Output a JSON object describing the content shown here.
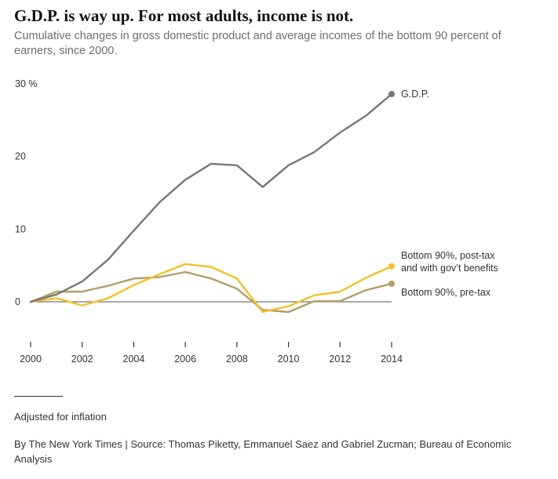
{
  "header": {
    "title": "G.D.P. is way up. For most adults, income is not.",
    "subtitle": "Cumulative changes in gross domestic product and average incomes of the bottom 90 percent of earners, since 2000."
  },
  "footer": {
    "note": "Adjusted for inflation",
    "source": "By The New York Times | Source:  Thomas Piketty, Emmanuel Saez and Gabriel Zucman; Bureau of Economic Analysis"
  },
  "chart_data": {
    "type": "line",
    "title": "G.D.P. is way up. For most adults, income is not.",
    "subtitle": "Cumulative changes in gross domestic product and average incomes of the bottom 90 percent of earners, since 2000.",
    "xlabel": "",
    "ylabel": "",
    "x": [
      2000,
      2001,
      2002,
      2003,
      2004,
      2005,
      2006,
      2007,
      2008,
      2009,
      2010,
      2011,
      2012,
      2013,
      2014
    ],
    "xlim": [
      2000,
      2014
    ],
    "ylim": [
      -5,
      30
    ],
    "x_ticks": [
      "2000",
      "2002",
      "2004",
      "2006",
      "2008",
      "2010",
      "2012",
      "2014"
    ],
    "y_ticks": [
      {
        "value": 30,
        "label": "30 %"
      },
      {
        "value": 20,
        "label": "20"
      },
      {
        "value": 10,
        "label": "10"
      },
      {
        "value": 0,
        "label": "0"
      }
    ],
    "grid": false,
    "legend": "direct labels at line ends",
    "series": [
      {
        "name": "G.D.P.",
        "color": "#777777",
        "values": [
          0,
          1.0,
          2.8,
          5.8,
          9.8,
          13.7,
          16.8,
          19.0,
          18.8,
          15.8,
          18.8,
          20.6,
          23.3,
          25.6,
          28.6
        ]
      },
      {
        "name": "Bottom 90%, post-tax and with gov’t benefits",
        "label_lines": [
          "Bottom 90%, post-tax",
          "and with gov’t benefits"
        ],
        "color": "#f2c029",
        "values": [
          0,
          0.5,
          -0.5,
          0.5,
          2.3,
          3.8,
          5.2,
          4.8,
          3.2,
          -1.4,
          -0.6,
          0.9,
          1.4,
          3.3,
          4.9
        ]
      },
      {
        "name": "Bottom 90%, pre-tax",
        "label_lines": [
          "Bottom 90%, pre-tax"
        ],
        "color": "#b49d6b",
        "values": [
          0,
          1.4,
          1.4,
          2.2,
          3.2,
          3.4,
          4.1,
          3.2,
          1.8,
          -1.1,
          -1.4,
          0.1,
          0.1,
          1.6,
          2.5
        ]
      }
    ]
  }
}
